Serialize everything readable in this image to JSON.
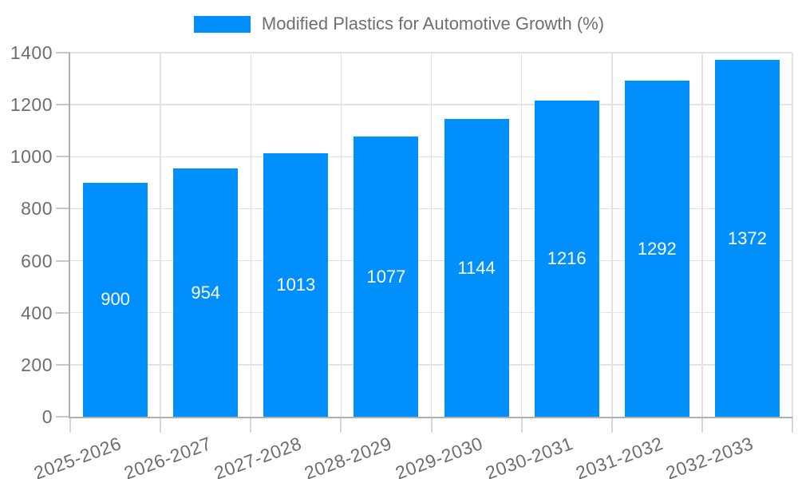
{
  "colors": {
    "bar": "#008ffb",
    "value_label": "#ffffff",
    "axis_label": "#6e6e6e",
    "legend_text": "#6f6f6f",
    "gridline": "#e2e2e2",
    "axis_line": "#b0b0b0",
    "background": "#ffffff"
  },
  "chart_data": {
    "type": "bar",
    "title": "Modified Plastics for Automotive Growth (%)",
    "categories": [
      "2025-2026",
      "2026-2027",
      "2027-2028",
      "2028-2029",
      "2029-2030",
      "2030-2031",
      "2031-2032",
      "2032-2033"
    ],
    "series": [
      {
        "name": "Modified Plastics for Automotive Growth (%)",
        "values": [
          900,
          954,
          1013,
          1077,
          1144,
          1216,
          1292,
          1372
        ]
      }
    ],
    "value_labels": [
      "900",
      "954",
      "1013",
      "1077",
      "1144",
      "1216",
      "1292",
      "1372"
    ],
    "xlabel": "",
    "ylabel": "",
    "ylim": [
      0,
      1400
    ],
    "ytick_step": 200,
    "ytick_labels": [
      "0",
      "200",
      "400",
      "600",
      "800",
      "1000",
      "1200",
      "1400"
    ],
    "legend_position": "top",
    "grid": true,
    "x_label_rotation_deg": -20,
    "value_label_position": "center-of-bar"
  }
}
